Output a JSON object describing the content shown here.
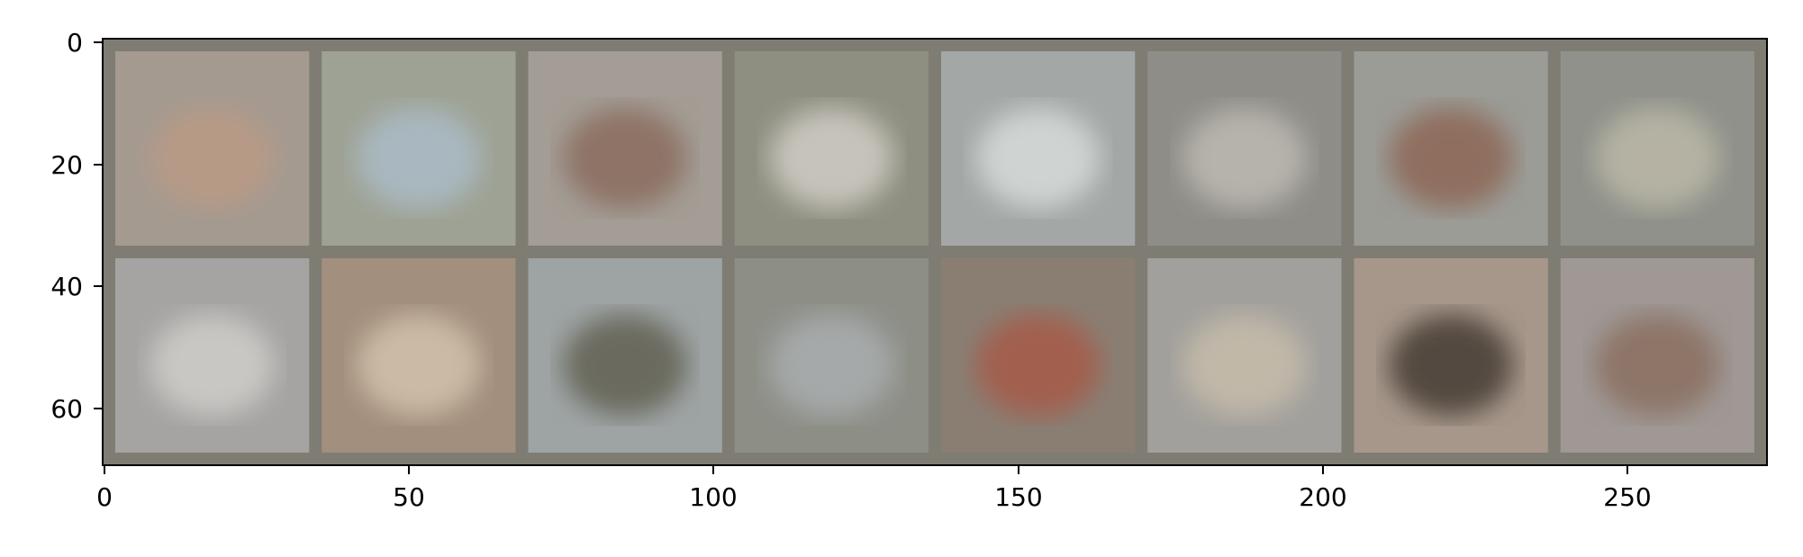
{
  "image_grid": {
    "rows": 2,
    "cols": 8,
    "background": "#7f7d73",
    "cells": [
      {
        "bg": "#a49a90",
        "accent": "#b79a86"
      },
      {
        "bg": "#9ea294",
        "accent": "#a9b8c0"
      },
      {
        "bg": "#a39d95",
        "accent": "#8e7366"
      },
      {
        "bg": "#8e8f80",
        "accent": "#c6c3bb"
      },
      {
        "bg": "#a3a7a5",
        "accent": "#cfd3d2"
      },
      {
        "bg": "#8e8d87",
        "accent": "#b6b3ac"
      },
      {
        "bg": "#9b9c96",
        "accent": "#8f6e5e"
      },
      {
        "bg": "#8f918a",
        "accent": "#b5b2a3"
      },
      {
        "bg": "#a5a4a2",
        "accent": "#c8c7c4"
      },
      {
        "bg": "#a28f7d",
        "accent": "#cbbba6"
      },
      {
        "bg": "#9ea4a4",
        "accent": "#6b6a5f"
      },
      {
        "bg": "#8d8f87",
        "accent": "#a5a9a9"
      },
      {
        "bg": "#8a7e73",
        "accent": "#a35f4e"
      },
      {
        "bg": "#a2a09c",
        "accent": "#c1b8a8"
      },
      {
        "bg": "#a7978b",
        "accent": "#52493f"
      },
      {
        "bg": "#9f9894",
        "accent": "#8d7467"
      }
    ]
  },
  "axes": {
    "x_ticks": [
      "0",
      "50",
      "100",
      "150",
      "200",
      "250"
    ],
    "y_ticks": [
      "0",
      "20",
      "40",
      "60"
    ]
  }
}
